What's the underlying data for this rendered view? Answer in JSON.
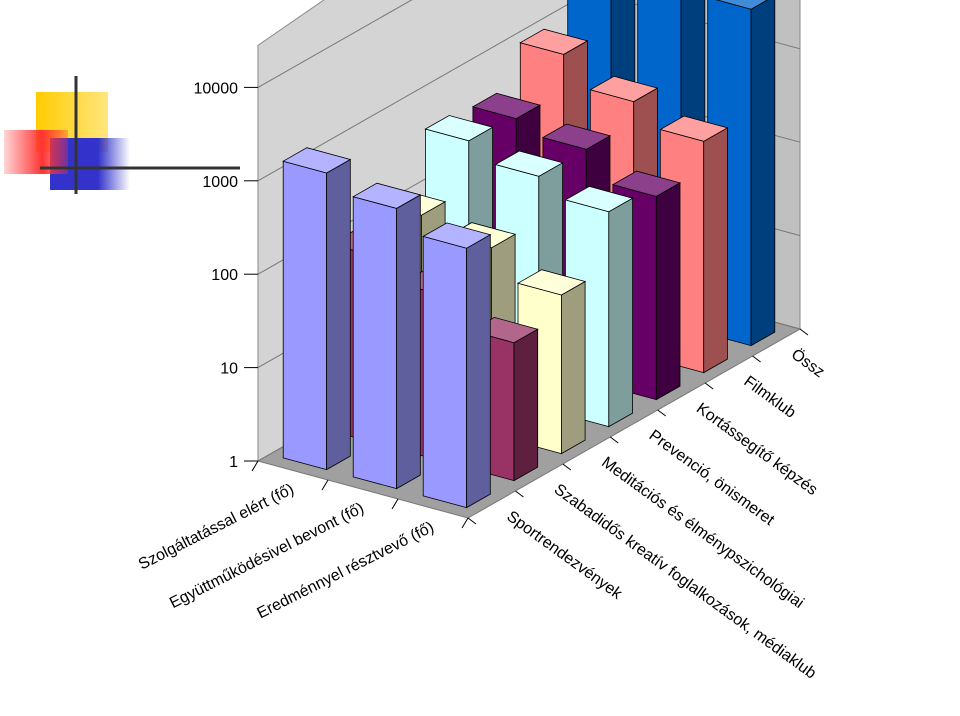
{
  "chart_data": {
    "type": "bar",
    "subtype": "3d-column",
    "title": "",
    "y_scale": "log",
    "ylim": [
      1,
      10000
    ],
    "y_ticks": [
      "1",
      "10",
      "100",
      "1000",
      "10000"
    ],
    "grid": true,
    "legend": "none",
    "categories": [
      "Szolgáltatással elért (fő)",
      "Együttműködésivel bevont (fő)",
      "Eredménnyel résztvevő (fő)"
    ],
    "series": [
      {
        "name": "Sportrendezvények",
        "color": "#9999ff",
        "values": [
          1500,
          1000,
          600
        ]
      },
      {
        "name": "Szabadidős kreatív foglalkozások, médiaklub",
        "color": "#993366",
        "values": [
          100,
          60,
          30
        ]
      },
      {
        "name": "Meditációs és élménypszichológiai",
        "color": "#ffffcc",
        "values": [
          140,
          100,
          50
        ]
      },
      {
        "name": "Prevenció, önismeret",
        "color": "#ccffff",
        "values": [
          450,
          300,
          200
        ]
      },
      {
        "name": "Kortássegítő képzés",
        "color": "#660066",
        "values": [
          400,
          300,
          150
        ]
      },
      {
        "name": "Filmklub",
        "color": "#ff8080",
        "values": [
          1000,
          500,
          300
        ]
      },
      {
        "name": "Össz",
        "color": "#0066cc",
        "values": [
          10000,
          5000,
          4000
        ]
      }
    ]
  },
  "decoration": {
    "logo_name": "squares-logo",
    "colors": [
      "#ffcc00",
      "#ff3333",
      "#3333cc",
      "#333333"
    ]
  }
}
